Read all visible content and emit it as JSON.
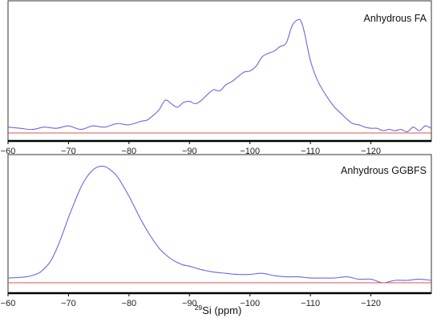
{
  "chart_data": [
    {
      "type": "line",
      "title": "Anhydrous FA",
      "xlabel": "",
      "ylabel": "",
      "x_reversed": true,
      "xlim": [
        -60,
        -130
      ],
      "ylim": [
        0,
        1
      ],
      "xticks": [
        -60,
        -70,
        -80,
        -90,
        -100,
        -110,
        -120
      ],
      "grid": false,
      "series": [
        {
          "color": "#6a67e0",
          "x": [
            -60,
            -62,
            -64,
            -66,
            -68,
            -70,
            -72,
            -74,
            -76,
            -78,
            -80,
            -82,
            -83,
            -84,
            -85,
            -86,
            -87,
            -88,
            -89,
            -90,
            -91,
            -92,
            -93,
            -94,
            -95,
            -96,
            -97,
            -98,
            -99,
            -100,
            -101,
            -102,
            -103,
            -104,
            -105,
            -106,
            -107,
            -108,
            -108.5,
            -109,
            -110,
            -111,
            -112,
            -113,
            -114,
            -115,
            -116,
            -117,
            -118,
            -119,
            -120,
            -121,
            -122,
            -123,
            -124,
            -125,
            -126,
            -127,
            -128,
            -129,
            -130
          ],
          "values": [
            0.05,
            0.04,
            0.03,
            0.05,
            0.04,
            0.06,
            0.03,
            0.06,
            0.05,
            0.08,
            0.07,
            0.1,
            0.11,
            0.15,
            0.2,
            0.28,
            0.25,
            0.22,
            0.26,
            0.27,
            0.25,
            0.28,
            0.33,
            0.37,
            0.36,
            0.41,
            0.44,
            0.48,
            0.52,
            0.53,
            0.57,
            0.65,
            0.68,
            0.7,
            0.74,
            0.77,
            0.92,
            0.97,
            0.95,
            0.86,
            0.62,
            0.47,
            0.37,
            0.29,
            0.22,
            0.17,
            0.12,
            0.08,
            0.07,
            0.05,
            0.04,
            0.04,
            0.02,
            0.03,
            0.02,
            0.03,
            0.01,
            0.05,
            0.02,
            0.06,
            0.04
          ]
        },
        {
          "color": "#e05050",
          "x": [
            -60,
            -130
          ],
          "values": [
            0,
            0
          ]
        }
      ]
    },
    {
      "type": "line",
      "title": "Anhydrous GGBFS",
      "xlabel": "29Si (ppm)",
      "ylabel": "",
      "x_reversed": true,
      "xlim": [
        -60,
        -130
      ],
      "ylim": [
        0,
        1
      ],
      "xticks": [
        -60,
        -70,
        -80,
        -90,
        -100,
        -110,
        -120
      ],
      "grid": false,
      "series": [
        {
          "color": "#6a67e0",
          "x": [
            -60,
            -63,
            -65,
            -66,
            -67,
            -68,
            -69,
            -70,
            -71,
            -72,
            -73,
            -74,
            -75,
            -76,
            -77,
            -78,
            -79,
            -80,
            -81,
            -82,
            -83,
            -84,
            -85,
            -86,
            -87,
            -88,
            -89,
            -90,
            -92,
            -94,
            -96,
            -98,
            -100,
            -102,
            -104,
            -106,
            -108,
            -110,
            -112,
            -114,
            -116,
            -118,
            -120,
            -122,
            -124,
            -126,
            -128,
            -130
          ],
          "values": [
            0.04,
            0.05,
            0.08,
            0.12,
            0.18,
            0.28,
            0.41,
            0.55,
            0.68,
            0.8,
            0.89,
            0.95,
            0.98,
            0.98,
            0.95,
            0.9,
            0.82,
            0.73,
            0.63,
            0.53,
            0.44,
            0.36,
            0.29,
            0.24,
            0.2,
            0.17,
            0.15,
            0.14,
            0.11,
            0.09,
            0.08,
            0.07,
            0.07,
            0.08,
            0.06,
            0.05,
            0.05,
            0.04,
            0.04,
            0.04,
            0.05,
            0.03,
            0.03,
            0.0,
            0.02,
            0.02,
            0.03,
            0.02
          ]
        },
        {
          "color": "#e05050",
          "x": [
            -60,
            -130
          ],
          "values": [
            0,
            0
          ]
        }
      ]
    }
  ]
}
